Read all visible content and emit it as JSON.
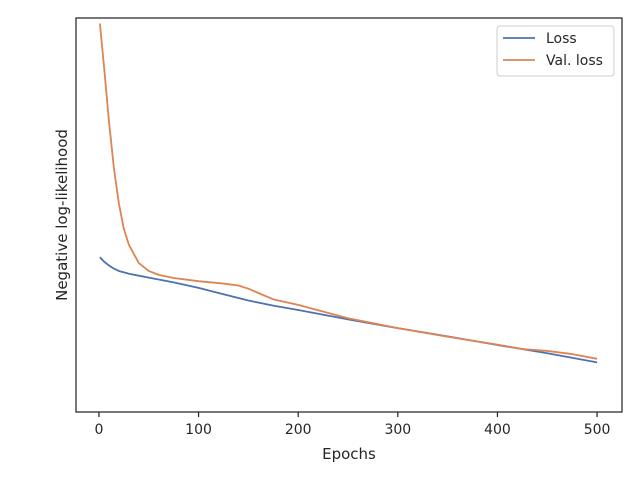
{
  "chart_data": {
    "type": "line",
    "title": "",
    "xlabel": "Epochs",
    "ylabel": "Negative log-likelihood",
    "xlim": [
      -23,
      525
    ],
    "ylim": [
      0,
      1
    ],
    "xticks": [
      0,
      100,
      200,
      300,
      400,
      500
    ],
    "yticks_shown": false,
    "grid": false,
    "legend": {
      "position": "top-right"
    },
    "series": [
      {
        "name": "Loss",
        "color": "#4c72b0",
        "x": [
          1,
          5,
          10,
          15,
          20,
          30,
          40,
          50,
          75,
          100,
          125,
          150,
          175,
          200,
          250,
          300,
          350,
          400,
          450,
          500
        ],
        "y": [
          0.393,
          0.382,
          0.372,
          0.364,
          0.358,
          0.351,
          0.346,
          0.341,
          0.329,
          0.315,
          0.299,
          0.283,
          0.27,
          0.259,
          0.235,
          0.213,
          0.192,
          0.17,
          0.149,
          0.126
        ]
      },
      {
        "name": "Val. loss",
        "color": "#dd8452",
        "x": [
          1,
          5,
          10,
          15,
          20,
          25,
          30,
          40,
          50,
          60,
          75,
          100,
          125,
          140,
          150,
          160,
          175,
          200,
          250,
          300,
          350,
          400,
          425,
          450,
          475,
          500
        ],
        "y": [
          0.986,
          0.88,
          0.74,
          0.62,
          0.53,
          0.465,
          0.425,
          0.378,
          0.358,
          0.348,
          0.34,
          0.332,
          0.326,
          0.321,
          0.313,
          0.302,
          0.286,
          0.272,
          0.238,
          0.213,
          0.191,
          0.171,
          0.16,
          0.155,
          0.147,
          0.135
        ]
      }
    ]
  }
}
